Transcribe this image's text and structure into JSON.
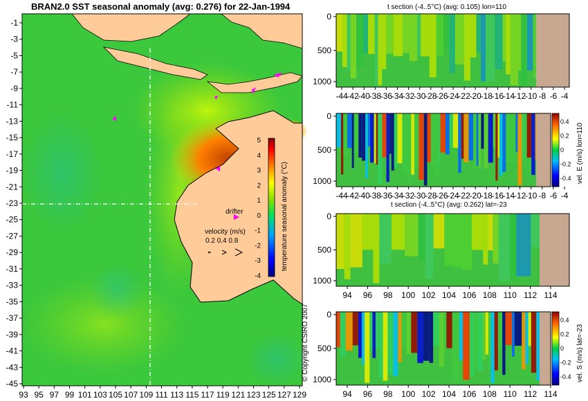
{
  "main_title": "BRAN2.0 SST seasonal anomaly (avg: 0.276) for 22-Jan-1994",
  "map": {
    "lon_ticks": [
      "93",
      "95",
      "97",
      "99",
      "101",
      "103",
      "105",
      "107",
      "109",
      "111",
      "113",
      "115",
      "117",
      "119",
      "121",
      "123",
      "125",
      "127",
      "129"
    ],
    "lat_ticks": [
      "-1",
      "-3",
      "-5",
      "-7",
      "-9",
      "-11",
      "-13",
      "-15",
      "-17",
      "-19",
      "-21",
      "-23",
      "-25",
      "-27",
      "-29",
      "-31",
      "-33",
      "-35",
      "-37",
      "-39",
      "-41",
      "-43",
      "-45"
    ],
    "colorbar_ticks": [
      "5",
      "4",
      "3",
      "2",
      "1",
      "0",
      "-1",
      "-2",
      "-3",
      "-4"
    ],
    "colorbar_label": "temperature seasonal anomaly (°C)",
    "drifter_label": "drifter",
    "velocity_label": "velocity (m/s)",
    "velocity_scale": [
      "0.2",
      "0.4",
      "0.8"
    ],
    "copyright": "© Copyright CSIRO 2007"
  },
  "chart_data": [
    {
      "type": "heatmap",
      "title": "BRAN2.0 SST seasonal anomaly (avg: 0.276) for 22-Jan-1994",
      "x_range": [
        93,
        130
      ],
      "y_range": [
        -45,
        0
      ],
      "cbar_range": [
        -4,
        5
      ],
      "cbar_label": "temperature seasonal anomaly (°C)",
      "section_lines": {
        "lon": 110,
        "lat": -23
      }
    },
    {
      "type": "heatmap",
      "title": "t section (-4..5°C) (avg: 0.105) lon=110",
      "x_ticks": [
        "-44",
        "-42",
        "-40",
        "-38",
        "-36",
        "-34",
        "-32",
        "-30",
        "-28",
        "-26",
        "-24",
        "-22",
        "-20",
        "-18",
        "-16",
        "-14",
        "-12",
        "-10",
        "-8",
        "-6",
        "-4"
      ],
      "y_ticks": [
        "0",
        "500",
        "1000"
      ],
      "y_range": [
        0,
        1100
      ]
    },
    {
      "type": "heatmap",
      "title": "",
      "x_ticks": [
        "-44",
        "-42",
        "-40",
        "-38",
        "-36",
        "-34",
        "-32",
        "-30",
        "-28",
        "-26",
        "-24",
        "-22",
        "-20",
        "-18",
        "-16",
        "-14",
        "-12",
        "-10",
        "-8",
        "-6",
        "-4"
      ],
      "y_ticks": [
        "0",
        "500",
        "1000"
      ],
      "y_range": [
        0,
        1100
      ],
      "cbar_ticks": [
        "0.4",
        "0.2",
        "0",
        "-0.2",
        "-0.4"
      ],
      "cbar_label": "vel. E (m/s) lon=110"
    },
    {
      "type": "heatmap",
      "title": "t section (-4..5°C) (avg: 0.262) lat=-23",
      "x_ticks": [
        "94",
        "96",
        "98",
        "100",
        "102",
        "104",
        "106",
        "108",
        "110",
        "112",
        "114"
      ],
      "y_ticks": [
        "0",
        "500",
        "1000"
      ],
      "y_range": [
        0,
        1100
      ]
    },
    {
      "type": "heatmap",
      "title": "",
      "x_ticks": [
        "94",
        "96",
        "98",
        "100",
        "102",
        "104",
        "106",
        "108",
        "110",
        "112",
        "114"
      ],
      "y_ticks": [
        "0",
        "500",
        "1000"
      ],
      "y_range": [
        0,
        1100
      ],
      "cbar_ticks": [
        "0.4",
        "0.2",
        "0",
        "-0.2",
        "-0.4"
      ],
      "cbar_label": "vel. S (m/s) lat=-23"
    }
  ]
}
